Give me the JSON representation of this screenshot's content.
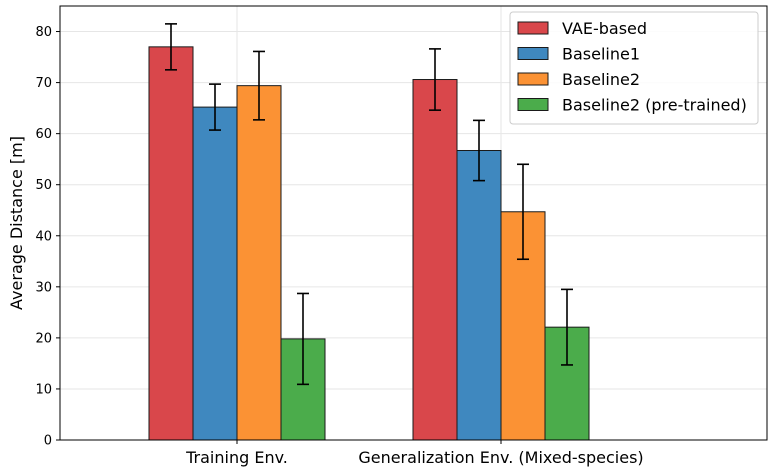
{
  "chart_data": {
    "type": "bar",
    "categories": [
      "Training Env.",
      "Generalization Env. (Mixed-species)"
    ],
    "ylabel": "Average Distance [m]",
    "xlabel": "",
    "ylim": [
      0,
      85
    ],
    "yticks": [
      0,
      10,
      20,
      30,
      40,
      50,
      60,
      70,
      80
    ],
    "grid": true,
    "legend_position": "top-right",
    "series": [
      {
        "name": "VAE-based",
        "color": "#d9474b",
        "values": [
          77,
          70.6
        ],
        "errors": [
          4.5,
          6
        ]
      },
      {
        "name": "Baseline1",
        "color": "#3f88bf",
        "values": [
          65.2,
          56.7
        ],
        "errors": [
          4.5,
          5.9
        ]
      },
      {
        "name": "Baseline2",
        "color": "#fb9234",
        "values": [
          69.4,
          44.7
        ],
        "errors": [
          6.7,
          9.3
        ]
      },
      {
        "name": "Baseline2 (pre-trained)",
        "color": "#4bac4b",
        "values": [
          19.8,
          22.1
        ],
        "errors": [
          8.9,
          7.4
        ]
      }
    ]
  }
}
